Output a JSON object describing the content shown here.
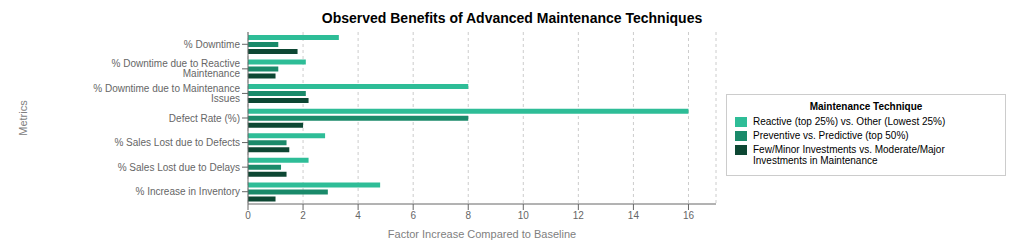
{
  "chart_data": {
    "type": "bar",
    "orientation": "horizontal",
    "title": "Observed Benefits of Advanced Maintenance Techniques",
    "xlabel": "Factor Increase Compared to Baseline",
    "ylabel": "Metrics",
    "legend_title": "Maintenance Technique",
    "categories": [
      "% Increase in Inventory",
      "% Sales Lost due to Delays",
      "% Sales Lost due to Defects",
      "Defect Rate (%)",
      "% Downtime due to Maintenance Issues",
      "% Downtime due to Reactive Maintenance",
      "% Downtime"
    ],
    "series": [
      {
        "name": "Reactive (top 25%) vs. Other (Lowest 25%)",
        "color": "#2EBD97",
        "values": [
          4.8,
          2.2,
          2.8,
          16.0,
          8.0,
          2.1,
          3.3
        ]
      },
      {
        "name": "Preventive vs. Predictive (top 50%)",
        "color": "#1A8A6A",
        "values": [
          2.9,
          1.2,
          1.4,
          8.0,
          2.1,
          1.1,
          1.1
        ]
      },
      {
        "name": "Few/Minor Investments vs. Moderate/Major Investments in Maintenance",
        "color": "#0D4733",
        "values": [
          1.0,
          1.4,
          1.5,
          2.0,
          2.2,
          1.0,
          1.8
        ]
      }
    ],
    "xlim": [
      0,
      17
    ],
    "xticks": [
      0,
      2,
      4,
      6,
      8,
      10,
      12,
      14,
      16
    ],
    "grid": "x",
    "legend": "right"
  }
}
